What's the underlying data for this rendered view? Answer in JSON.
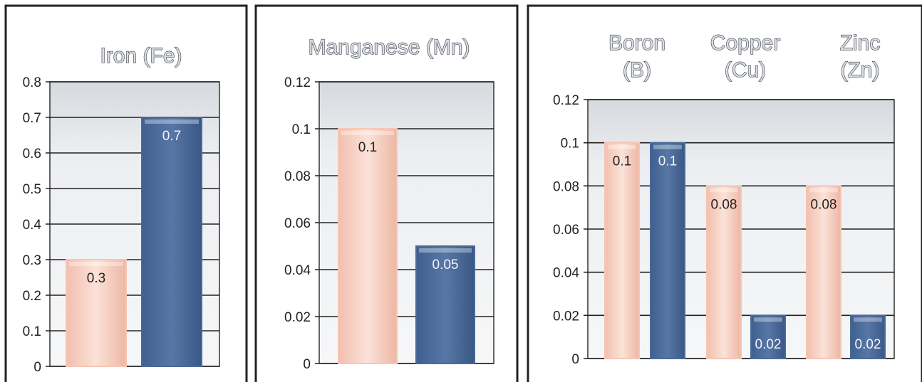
{
  "colors": {
    "series_a": "#f5c6b5",
    "series_b": "#4a6a99",
    "plot_background": "#eceef2"
  },
  "chart_data": [
    {
      "type": "bar",
      "title": "Iron (Fe)",
      "categories": [
        "Iron (Fe)"
      ],
      "ylim": [
        0,
        0.8
      ],
      "yticks": [
        "0",
        "0.1",
        "0.2",
        "0.3",
        "0.4",
        "0.5",
        "0.6",
        "0.7",
        "0.8"
      ],
      "grid": true,
      "series": [
        {
          "values": [
            0.3
          ],
          "labels": [
            "0.3"
          ]
        },
        {
          "values": [
            0.7
          ],
          "labels": [
            "0.7"
          ]
        }
      ]
    },
    {
      "type": "bar",
      "title": "Manganese (Mn)",
      "categories": [
        "Manganese (Mn)"
      ],
      "ylim": [
        0,
        0.12
      ],
      "yticks": [
        "0",
        "0.02",
        "0.04",
        "0.06",
        "0.08",
        "0.1",
        "0.12"
      ],
      "grid": true,
      "series": [
        {
          "values": [
            0.1
          ],
          "labels": [
            "0.1"
          ]
        },
        {
          "values": [
            0.05
          ],
          "labels": [
            "0.05"
          ]
        }
      ]
    },
    {
      "type": "bar",
      "categories": [
        {
          "line1": "Boron",
          "line2": "(B)"
        },
        {
          "line1": "Copper",
          "line2": "(Cu)"
        },
        {
          "line1": "Zinc",
          "line2": "(Zn)"
        }
      ],
      "ylim": [
        0,
        0.12
      ],
      "yticks": [
        "0",
        "0.02",
        "0.04",
        "0.06",
        "0.08",
        "0.1",
        "0.12"
      ],
      "grid": true,
      "series": [
        {
          "values": [
            0.1,
            0.08,
            0.08
          ],
          "labels": [
            "0.1",
            "0.08",
            "0.08"
          ]
        },
        {
          "values": [
            0.1,
            0.02,
            0.02
          ],
          "labels": [
            "0.1",
            "0.02",
            "0.02"
          ]
        }
      ]
    }
  ]
}
